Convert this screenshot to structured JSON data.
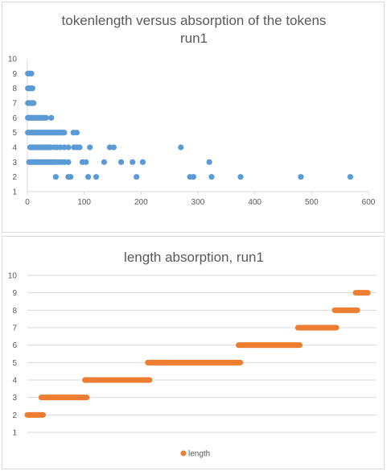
{
  "chart_data": [
    {
      "type": "scatter",
      "title": "tokenlength versus absorption of the tokens",
      "subtitle": "run1",
      "xlim": [
        0,
        600
      ],
      "ylim": [
        1,
        10
      ],
      "x_ticks": [
        0,
        100,
        200,
        300,
        400,
        500,
        600
      ],
      "y_ticks": [
        1,
        2,
        3,
        4,
        5,
        6,
        7,
        8,
        9,
        10
      ],
      "grid": false,
      "point_color": "#5b9bd5",
      "series": [
        {
          "points": [
            [
              1,
              9
            ],
            [
              3,
              9
            ],
            [
              5,
              9
            ],
            [
              7,
              9
            ],
            [
              1,
              8
            ],
            [
              3,
              8
            ],
            [
              5,
              8
            ],
            [
              7,
              8
            ],
            [
              9,
              8
            ],
            [
              1,
              7
            ],
            [
              3,
              7
            ],
            [
              5,
              7
            ],
            [
              7,
              7
            ],
            [
              9,
              7
            ],
            [
              11,
              7
            ],
            [
              1,
              6
            ],
            [
              3,
              6
            ],
            [
              5,
              6
            ],
            [
              7,
              6
            ],
            [
              9,
              6
            ],
            [
              11,
              6
            ],
            [
              13,
              6
            ],
            [
              15,
              6
            ],
            [
              17,
              6
            ],
            [
              19,
              6
            ],
            [
              21,
              6
            ],
            [
              23,
              6
            ],
            [
              25,
              6
            ],
            [
              27,
              6
            ],
            [
              29,
              6
            ],
            [
              31,
              6
            ],
            [
              33,
              6
            ],
            [
              42,
              6
            ],
            [
              1,
              5
            ],
            [
              3,
              5
            ],
            [
              5,
              5
            ],
            [
              7,
              5
            ],
            [
              9,
              5
            ],
            [
              11,
              5
            ],
            [
              13,
              5
            ],
            [
              15,
              5
            ],
            [
              17,
              5
            ],
            [
              19,
              5
            ],
            [
              21,
              5
            ],
            [
              23,
              5
            ],
            [
              25,
              5
            ],
            [
              27,
              5
            ],
            [
              29,
              5
            ],
            [
              31,
              5
            ],
            [
              33,
              5
            ],
            [
              35,
              5
            ],
            [
              37,
              5
            ],
            [
              39,
              5
            ],
            [
              41,
              5
            ],
            [
              43,
              5
            ],
            [
              45,
              5
            ],
            [
              47,
              5
            ],
            [
              49,
              5
            ],
            [
              51,
              5
            ],
            [
              53,
              5
            ],
            [
              55,
              5
            ],
            [
              57,
              5
            ],
            [
              59,
              5
            ],
            [
              61,
              5
            ],
            [
              63,
              5
            ],
            [
              65,
              5
            ],
            [
              81,
              5
            ],
            [
              87,
              5
            ],
            [
              5,
              4
            ],
            [
              8,
              4
            ],
            [
              11,
              4
            ],
            [
              14,
              4
            ],
            [
              17,
              4
            ],
            [
              20,
              4
            ],
            [
              23,
              4
            ],
            [
              26,
              4
            ],
            [
              29,
              4
            ],
            [
              32,
              4
            ],
            [
              35,
              4
            ],
            [
              38,
              4
            ],
            [
              41,
              4
            ],
            [
              47,
              4
            ],
            [
              52,
              4
            ],
            [
              58,
              4
            ],
            [
              65,
              4
            ],
            [
              72,
              4
            ],
            [
              82,
              4
            ],
            [
              87,
              4
            ],
            [
              92,
              4
            ],
            [
              110,
              4
            ],
            [
              145,
              4
            ],
            [
              152,
              4
            ],
            [
              270,
              4
            ],
            [
              3,
              3
            ],
            [
              6,
              3
            ],
            [
              9,
              3
            ],
            [
              12,
              3
            ],
            [
              15,
              3
            ],
            [
              18,
              3
            ],
            [
              21,
              3
            ],
            [
              24,
              3
            ],
            [
              27,
              3
            ],
            [
              30,
              3
            ],
            [
              33,
              3
            ],
            [
              36,
              3
            ],
            [
              39,
              3
            ],
            [
              42,
              3
            ],
            [
              45,
              3
            ],
            [
              48,
              3
            ],
            [
              51,
              3
            ],
            [
              56,
              3
            ],
            [
              61,
              3
            ],
            [
              66,
              3
            ],
            [
              72,
              3
            ],
            [
              97,
              3
            ],
            [
              103,
              3
            ],
            [
              135,
              3
            ],
            [
              165,
              3
            ],
            [
              185,
              3
            ],
            [
              203,
              3
            ],
            [
              320,
              3
            ],
            [
              50,
              2
            ],
            [
              72,
              2
            ],
            [
              76,
              2
            ],
            [
              107,
              2
            ],
            [
              121,
              2
            ],
            [
              192,
              2
            ],
            [
              286,
              2
            ],
            [
              292,
              2
            ],
            [
              324,
              2
            ],
            [
              375,
              2
            ],
            [
              481,
              2
            ],
            [
              568,
              2
            ]
          ]
        }
      ]
    },
    {
      "type": "scatter",
      "title": "length absorption, run1",
      "ylim": [
        1,
        10
      ],
      "y_ticks": [
        1,
        2,
        3,
        4,
        5,
        6,
        7,
        8,
        9,
        10
      ],
      "grid": true,
      "legend": {
        "position": "bottom",
        "label": "length"
      },
      "point_color": "#ed7d31",
      "series": [
        {
          "name": "length",
          "segments": [
            {
              "y": 2,
              "x_start": 0.0,
              "x_end": 0.045
            },
            {
              "y": 3,
              "x_start": 0.04,
              "x_end": 0.17
            },
            {
              "y": 4,
              "x_start": 0.165,
              "x_end": 0.35
            },
            {
              "y": 5,
              "x_start": 0.345,
              "x_end": 0.61
            },
            {
              "y": 6,
              "x_start": 0.605,
              "x_end": 0.78
            },
            {
              "y": 7,
              "x_start": 0.775,
              "x_end": 0.885
            },
            {
              "y": 8,
              "x_start": 0.88,
              "x_end": 0.945
            },
            {
              "y": 9,
              "x_start": 0.94,
              "x_end": 0.975
            }
          ]
        }
      ]
    }
  ]
}
